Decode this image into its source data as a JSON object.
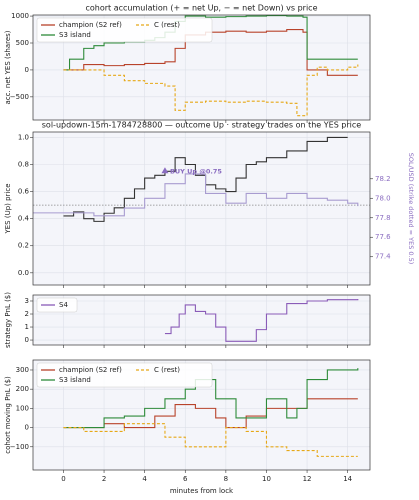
{
  "chart_data": [
    {
      "type": "line",
      "title": "cohort accumulation (+ = net Up, − = net Down) vs price",
      "ylabel": "acc. net YES (shares)",
      "xlim": [
        -1.5,
        15.1
      ],
      "ylim": [
        -930,
        1020
      ],
      "xticks": [
        0,
        2,
        4,
        6,
        8,
        10,
        12,
        14
      ],
      "yticks": [
        {
          "value": -500,
          "label": "−500"
        },
        0,
        500,
        1000
      ],
      "grid": true,
      "step": true,
      "legend": "upper left",
      "series": [
        {
          "name": "champion (S2 ref)",
          "color": "#b8432b",
          "dashed": false,
          "x": [
            0,
            1,
            2,
            3,
            4,
            5,
            5.5,
            6,
            7,
            8,
            9,
            10,
            11,
            11.8,
            12,
            13,
            14.5
          ],
          "values": [
            0,
            100,
            80,
            100,
            120,
            150,
            400,
            650,
            700,
            720,
            700,
            720,
            750,
            700,
            0,
            -100,
            -100
          ]
        },
        {
          "name": "S3 island",
          "color": "#2e8b3a",
          "dashed": false,
          "x": [
            0,
            0.3,
            1,
            1.5,
            2,
            3,
            4,
            4.5,
            5,
            5.5,
            6,
            7,
            8,
            9,
            10,
            11,
            11.8,
            12,
            13,
            14,
            14.5
          ],
          "values": [
            0,
            200,
            400,
            450,
            500,
            520,
            550,
            600,
            700,
            900,
            1000,
            980,
            990,
            1000,
            1010,
            1000,
            980,
            200,
            200,
            200,
            200
          ]
        },
        {
          "name": "C (rest)",
          "color": "#e6a817",
          "dashed": true,
          "x": [
            0,
            1,
            2,
            3,
            4,
            5,
            5.5,
            6,
            7,
            8,
            9,
            10,
            11,
            11.5,
            12,
            12.5,
            13,
            14,
            14.5
          ],
          "values": [
            0,
            0,
            -100,
            -200,
            -250,
            -300,
            -750,
            -600,
            -580,
            -600,
            -580,
            -600,
            -620,
            -850,
            -100,
            50,
            0,
            50,
            100
          ]
        }
      ]
    },
    {
      "type": "line",
      "title": "sol-updown-15m-1784728800 — outcome Up · strategy trades on the YES price",
      "ylabel": "YES (Up) price",
      "y2label": "SOL/USD (strike dotted = YES 0.5)",
      "xlim": [
        -1.5,
        15.1
      ],
      "ylim": [
        -0.09,
        1.04
      ],
      "y2lim": [
        77.11,
        78.68
      ],
      "xticks": [
        0,
        2,
        4,
        6,
        8,
        10,
        12,
        14
      ],
      "yticks": [
        {
          "value": 0,
          "label": "0.0"
        },
        0.2,
        0.4,
        0.6,
        0.8,
        {
          "value": 1,
          "label": "1.0"
        }
      ],
      "y2ticks": [
        77.4,
        77.6,
        77.8,
        {
          "value": 78,
          "label": "78.0"
        },
        78.2
      ],
      "grid": true,
      "step": true,
      "reference_line": 0.5,
      "annotation": {
        "text": "BUY Up @0.75",
        "x": 5,
        "y": 0.75,
        "color": "#8a6cc0"
      },
      "series": [
        {
          "name": "YES price",
          "color": "#333333",
          "dashed": false,
          "x": [
            0,
            0.5,
            1,
            1.5,
            2,
            2.5,
            3,
            3.5,
            4,
            4.5,
            5,
            5.5,
            6,
            6.5,
            7,
            7.5,
            8,
            8.5,
            9,
            9.5,
            10,
            11,
            12,
            13,
            14
          ],
          "values": [
            0.42,
            0.45,
            0.4,
            0.38,
            0.44,
            0.48,
            0.55,
            0.62,
            0.7,
            0.72,
            0.75,
            0.85,
            0.8,
            0.72,
            0.65,
            0.62,
            0.6,
            0.7,
            0.8,
            0.82,
            0.85,
            0.9,
            0.97,
            1,
            1
          ]
        },
        {
          "name": "SOL/USD",
          "axis": "y2",
          "color": "#a89cd0",
          "dashed": false,
          "x": [
            -1.5,
            0,
            1.5,
            3,
            4,
            5,
            6,
            7,
            8,
            9,
            10,
            11,
            12,
            13,
            14,
            14.5
          ],
          "values": [
            77.85,
            77.85,
            77.82,
            77.9,
            78,
            78.15,
            78.25,
            78.05,
            77.95,
            78.05,
            78,
            78.05,
            78,
            77.98,
            77.95,
            77.92
          ]
        }
      ]
    },
    {
      "type": "line",
      "ylabel": "strategy PnL ($)",
      "xlim": [
        -1.5,
        15.1
      ],
      "ylim": [
        -0.38,
        3.46
      ],
      "xticks": [
        0,
        2,
        4,
        6,
        8,
        10,
        12,
        14
      ],
      "yticks": [
        0,
        1,
        2,
        3
      ],
      "grid": true,
      "step": true,
      "legend": "upper left",
      "series": [
        {
          "name": "S4",
          "color": "#8a5cb8",
          "dashed": false,
          "x": [
            5,
            5.3,
            5.7,
            6,
            6.5,
            7,
            7.5,
            8,
            9,
            9.5,
            10,
            11,
            12,
            13,
            14.5
          ],
          "values": [
            0.5,
            1,
            2,
            2.7,
            2.2,
            2,
            1,
            -0.1,
            -0.1,
            0.8,
            2,
            2.8,
            3,
            3.1,
            3.15
          ]
        }
      ]
    },
    {
      "type": "line",
      "ylabel": "cohort moving PnL ($)",
      "xlabel": "minutes from lock",
      "xlim": [
        -1.5,
        15.1
      ],
      "ylim": [
        -221,
        352
      ],
      "xticks": [
        0,
        2,
        4,
        6,
        8,
        10,
        12,
        14
      ],
      "yticks": [
        {
          "value": -100,
          "label": "−100"
        },
        0,
        100,
        200,
        300
      ],
      "grid": true,
      "step": true,
      "legend": "upper left",
      "series": [
        {
          "name": "champion (S2 ref)",
          "color": "#b8432b",
          "dashed": false,
          "x": [
            0,
            2,
            3,
            4.5,
            5.5,
            6.5,
            7.5,
            8,
            9,
            10,
            12,
            14.5
          ],
          "values": [
            0,
            20,
            0,
            60,
            120,
            100,
            50,
            0,
            60,
            100,
            150,
            150
          ]
        },
        {
          "name": "S3 island",
          "color": "#2e8b3a",
          "dashed": false,
          "x": [
            0,
            2,
            3,
            4,
            5,
            6,
            6.5,
            7.5,
            8.5,
            10,
            11,
            11.5,
            12,
            13,
            14.5
          ],
          "values": [
            0,
            50,
            60,
            100,
            150,
            200,
            250,
            150,
            50,
            150,
            50,
            100,
            250,
            300,
            310
          ]
        },
        {
          "name": "C (rest)",
          "color": "#e6a817",
          "dashed": true,
          "x": [
            0,
            1,
            3,
            5,
            6,
            7.5,
            8,
            9,
            10,
            11,
            12.5,
            14.5
          ],
          "values": [
            0,
            -20,
            20,
            -50,
            -100,
            -100,
            0,
            -20,
            -100,
            -120,
            -150,
            -150
          ]
        }
      ]
    }
  ]
}
